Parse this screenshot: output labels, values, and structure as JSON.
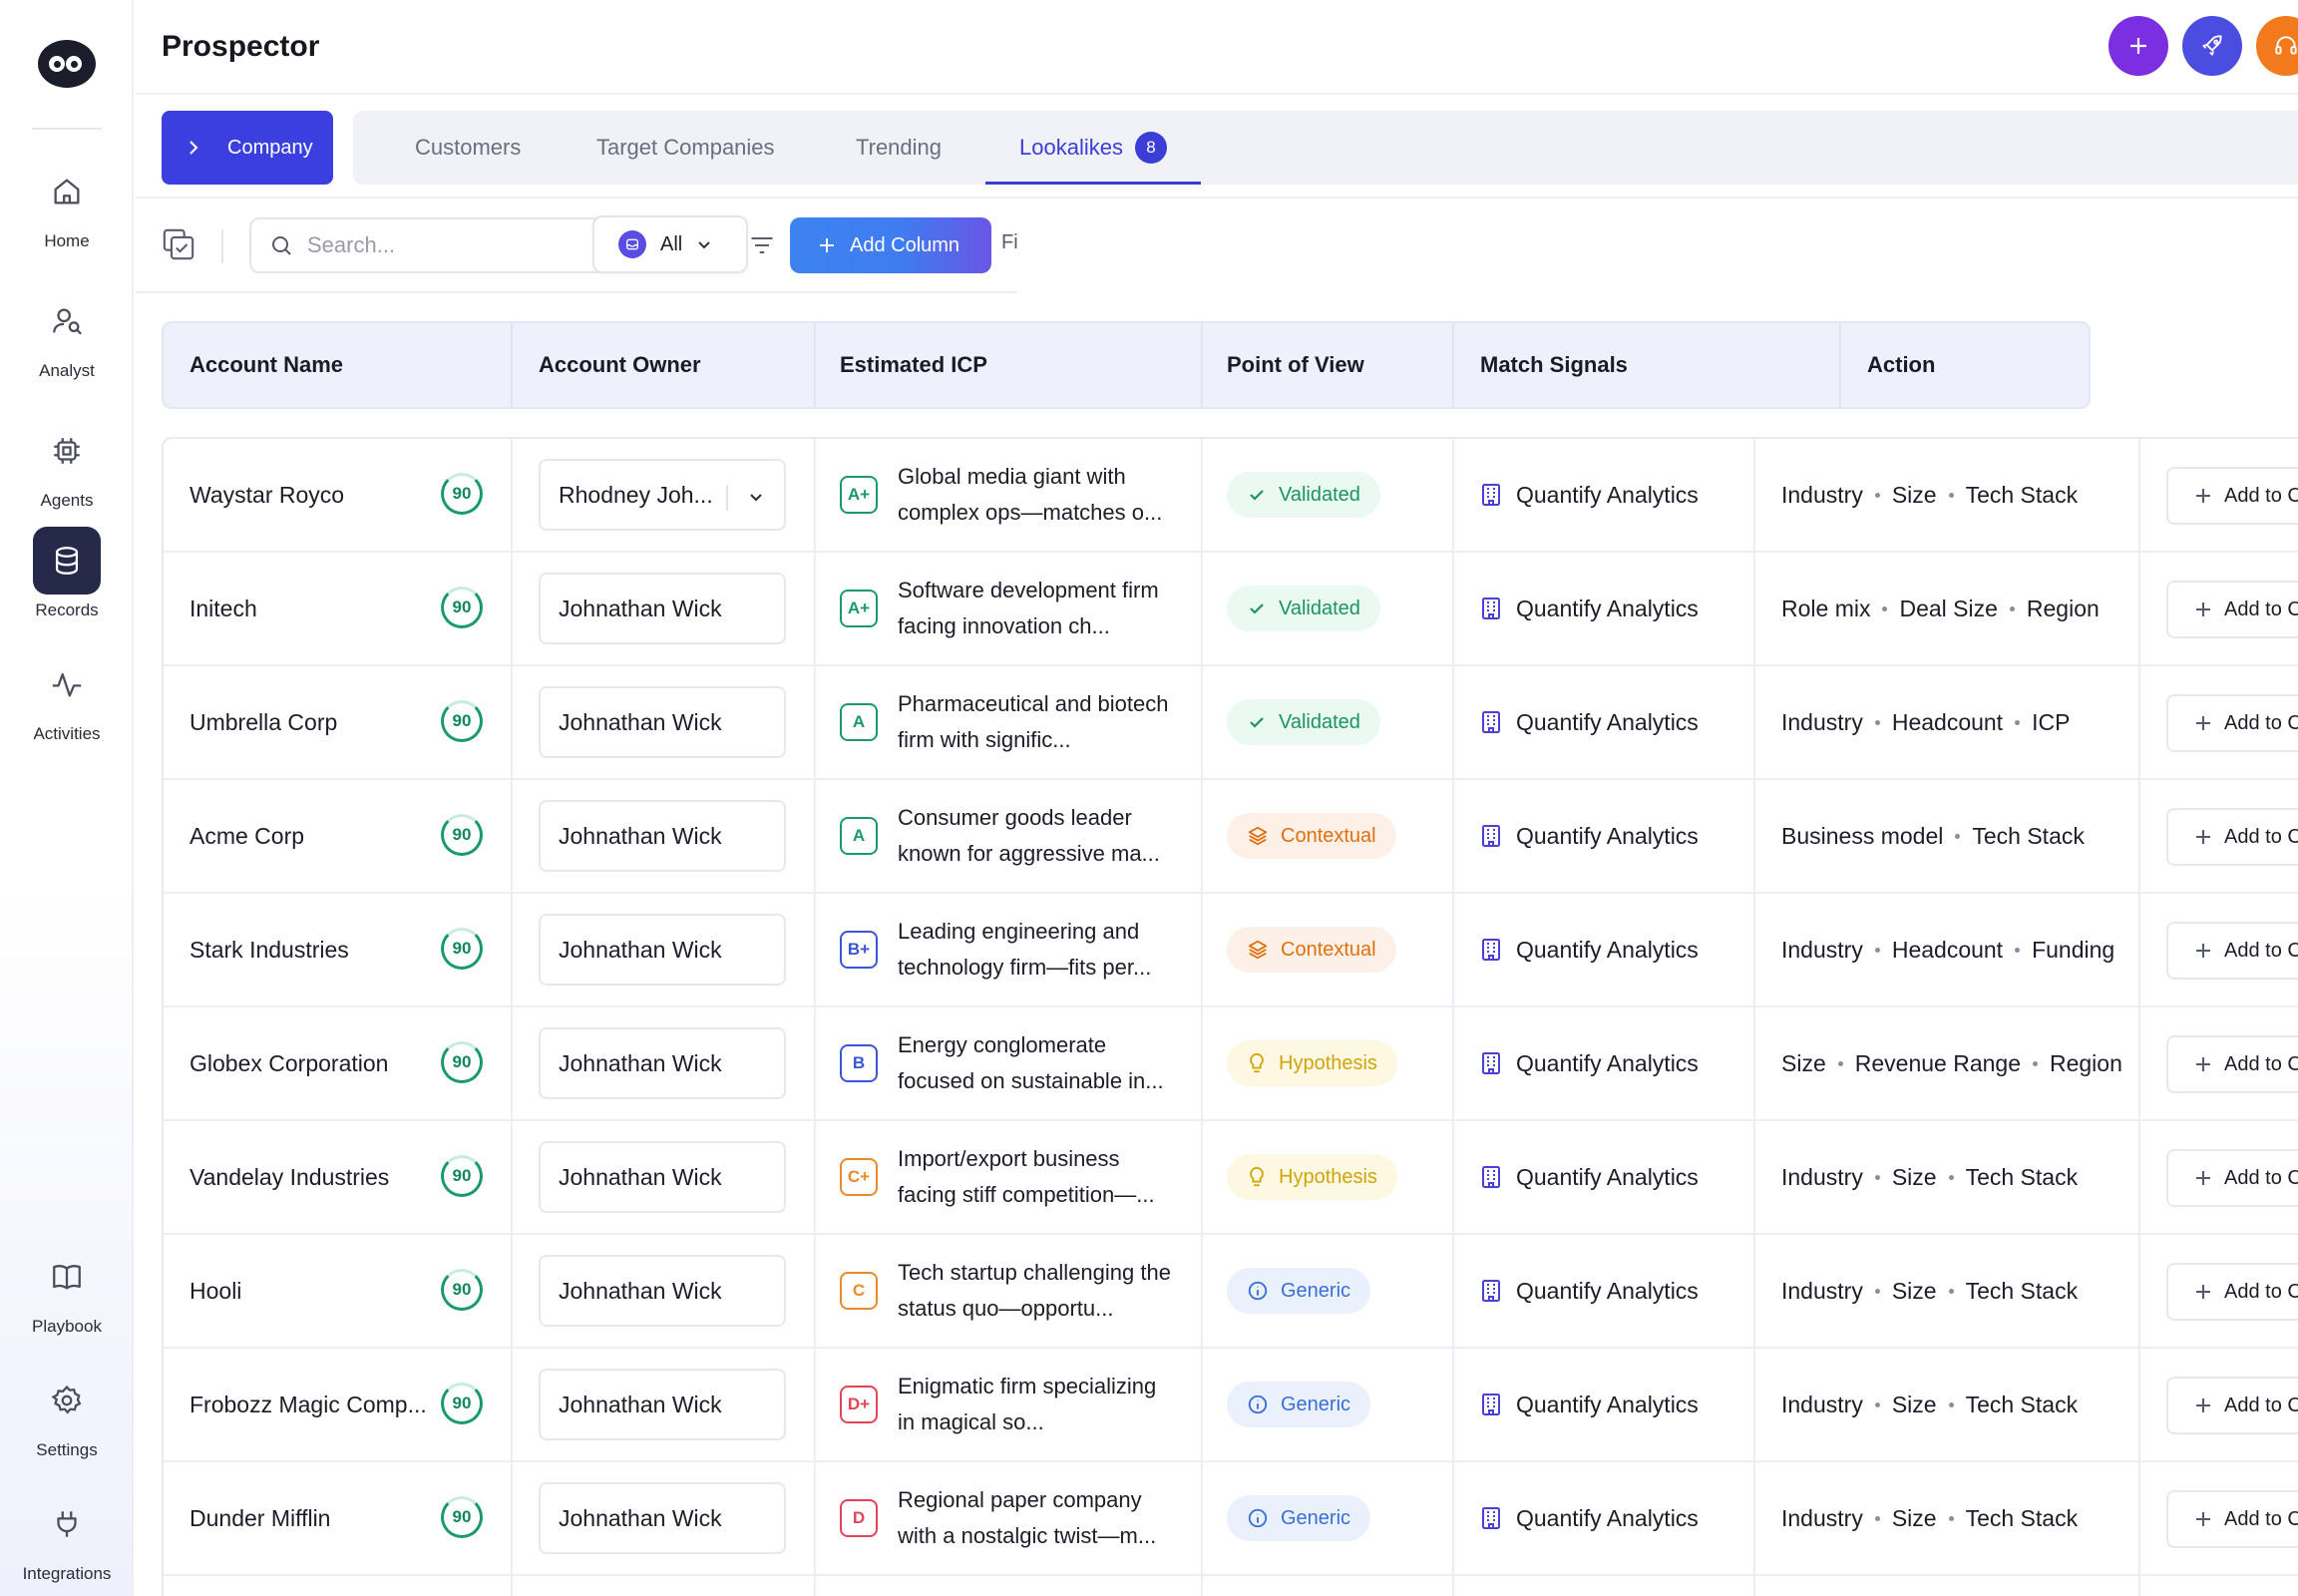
{
  "app": {
    "title": "Prospector"
  },
  "sidebar": {
    "items": [
      {
        "label": "Home",
        "icon": "home-icon"
      },
      {
        "label": "Analyst",
        "icon": "analyst-icon"
      },
      {
        "label": "Agents",
        "icon": "chip-icon"
      },
      {
        "label": "Records",
        "icon": "database-icon",
        "active": true
      },
      {
        "label": "Activities",
        "icon": "activity-icon"
      },
      {
        "label": "Playbook",
        "icon": "book-icon"
      },
      {
        "label": "Settings",
        "icon": "gear-icon"
      },
      {
        "label": "Integrations",
        "icon": "plug-icon"
      }
    ]
  },
  "header": {
    "buttons": [
      {
        "icon": "plus-icon",
        "color": "#7b2fe0"
      },
      {
        "icon": "rocket-icon",
        "color": "#4a4de0"
      },
      {
        "icon": "headset-icon",
        "color": "#f07a1c"
      }
    ]
  },
  "tabs": {
    "company_label": "Company",
    "items": [
      {
        "label": "Customers"
      },
      {
        "label": "Target Companies"
      },
      {
        "label": "Trending"
      },
      {
        "label": "Lookalikes",
        "count": "8",
        "active": true
      }
    ]
  },
  "toolbar": {
    "search_placeholder": "Search...",
    "filter_value": "All",
    "add_column_label": "Add Column",
    "truncated_label": "Fi"
  },
  "table": {
    "headers": [
      "Account Name",
      "Account Owner",
      "Estimated ICP",
      "Point of View",
      "Match Signals",
      "Action"
    ],
    "rows": [
      {
        "account": "Waystar Royco",
        "score": "90",
        "owner": "Rhodney Joh...",
        "owner_dropdown": true,
        "grade": "A+",
        "icp": "Global media giant with complex ops—matches o...",
        "pov": "Validated",
        "pov_type": "validated",
        "match": "Quantify Analytics",
        "signals": [
          "Industry",
          "Size",
          "Tech Stack"
        ],
        "action": "Add to C"
      },
      {
        "account": "Initech",
        "score": "90",
        "owner": "Johnathan Wick",
        "grade": "A+",
        "icp": "Software development firm facing innovation ch...",
        "pov": "Validated",
        "pov_type": "validated",
        "match": "Quantify Analytics",
        "signals": [
          "Role mix",
          "Deal Size",
          "Region"
        ],
        "action": "Add to C"
      },
      {
        "account": "Umbrella Corp",
        "score": "90",
        "owner": "Johnathan Wick",
        "grade": "A",
        "icp": "Pharmaceutical and biotech firm with signific...",
        "pov": "Validated",
        "pov_type": "validated",
        "match": "Quantify Analytics",
        "signals": [
          "Industry",
          "Headcount",
          "ICP"
        ],
        "action": "Add to C"
      },
      {
        "account": "Acme Corp",
        "score": "90",
        "owner": "Johnathan Wick",
        "grade": "A",
        "icp": "Consumer goods leader known for aggressive ma...",
        "pov": "Contextual",
        "pov_type": "contextual",
        "match": "Quantify Analytics",
        "signals": [
          "Business model",
          "Tech Stack"
        ],
        "action": "Add to C"
      },
      {
        "account": "Stark Industries",
        "score": "90",
        "owner": "Johnathan Wick",
        "grade": "B+",
        "icp": "Leading engineering and technology firm—fits per...",
        "pov": "Contextual",
        "pov_type": "contextual",
        "match": "Quantify Analytics",
        "signals": [
          "Industry",
          "Headcount",
          "Funding"
        ],
        "action": "Add to C"
      },
      {
        "account": "Globex Corporation",
        "score": "90",
        "owner": "Johnathan Wick",
        "grade": "B",
        "icp": "Energy conglomerate focused on sustainable in...",
        "pov": "Hypothesis",
        "pov_type": "hypothesis",
        "match": "Quantify Analytics",
        "signals": [
          "Size",
          "Revenue Range",
          "Region"
        ],
        "action": "Add to C"
      },
      {
        "account": "Vandelay Industries",
        "score": "90",
        "owner": "Johnathan Wick",
        "grade": "C+",
        "icp": "Import/export business facing stiff competition—...",
        "pov": "Hypothesis",
        "pov_type": "hypothesis",
        "match": "Quantify Analytics",
        "signals": [
          "Industry",
          "Size",
          "Tech Stack"
        ],
        "action": "Add to C"
      },
      {
        "account": "Hooli",
        "score": "90",
        "owner": "Johnathan Wick",
        "grade": "C",
        "icp": "Tech startup challenging the status quo—opportu...",
        "pov": "Generic",
        "pov_type": "generic",
        "match": "Quantify Analytics",
        "signals": [
          "Industry",
          "Size",
          "Tech Stack"
        ],
        "action": "Add to C"
      },
      {
        "account": "Frobozz Magic Comp...",
        "score": "90",
        "owner": "Johnathan Wick",
        "grade": "D+",
        "icp": "Enigmatic firm specializing in magical so...",
        "pov": "Generic",
        "pov_type": "generic",
        "match": "Quantify Analytics",
        "signals": [
          "Industry",
          "Size",
          "Tech Stack"
        ],
        "action": "Add to C"
      },
      {
        "account": "Dunder Mifflin",
        "score": "90",
        "owner": "Johnathan Wick",
        "grade": "D",
        "icp": "Regional paper company with a nostalgic twist—m...",
        "pov": "Generic",
        "pov_type": "generic",
        "match": "Quantify Analytics",
        "signals": [
          "Industry",
          "Size",
          "Tech Stack"
        ],
        "action": "Add to C"
      }
    ]
  },
  "colors": {
    "accent": "#3c3fe0",
    "grade_green": "#1a9a6c",
    "grade_blue": "#3a55d6",
    "grade_orange": "#ec8a2a",
    "grade_red": "#e0455a"
  }
}
